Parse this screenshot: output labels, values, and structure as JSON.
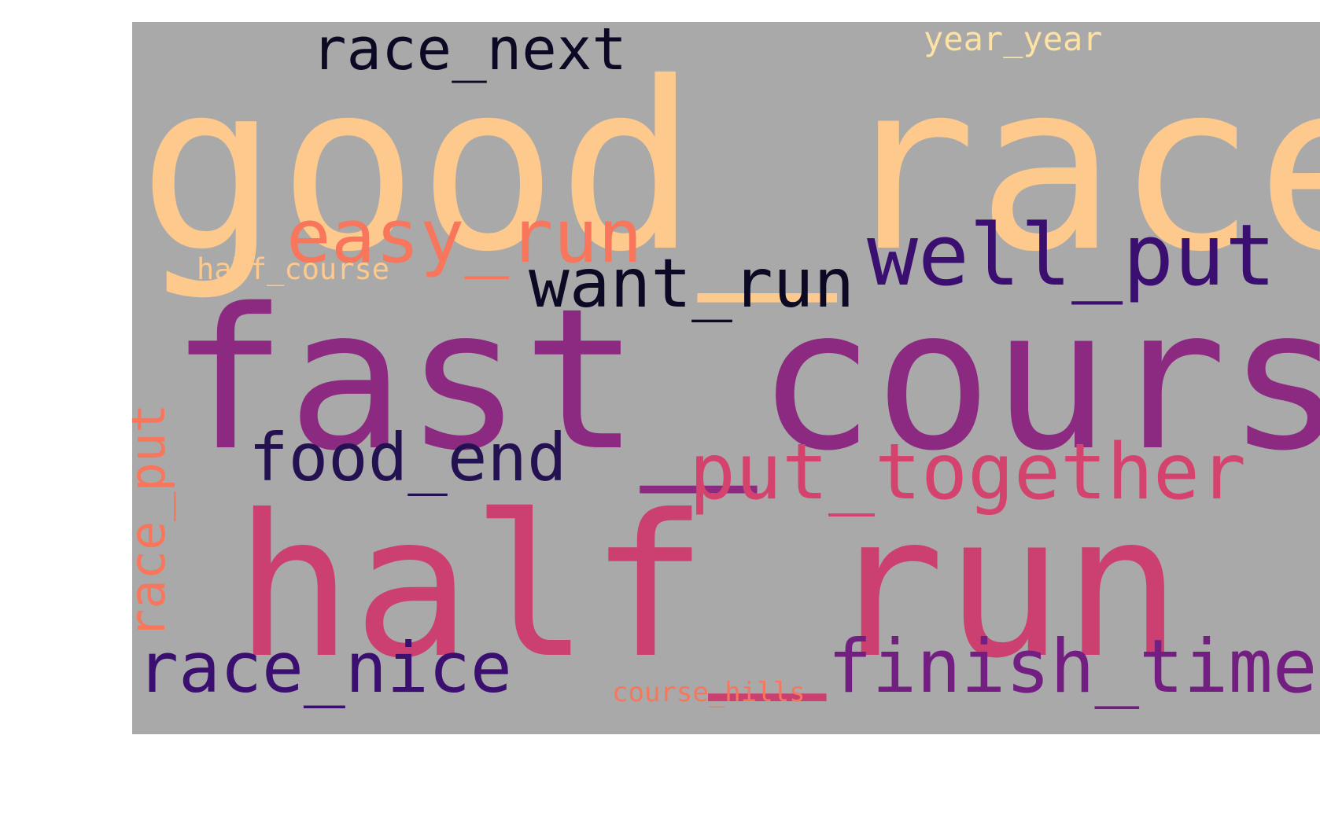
{
  "wordcloud": {
    "background": "#a9a9a9",
    "words": {
      "good_race": {
        "text": "good_race",
        "color": "#fec98d"
      },
      "race_next": {
        "text": "race_next",
        "color": "#0b0924"
      },
      "year_year": {
        "text": "year_year",
        "color": "#fde2a3"
      },
      "easy_run": {
        "text": "easy_run",
        "color": "#f8765c"
      },
      "half_course": {
        "text": "half_course",
        "color": "#fec98d"
      },
      "want_run": {
        "text": "want_run",
        "color": "#0b0924"
      },
      "well_put": {
        "text": "well_put",
        "color": "#3b0f70"
      },
      "fast_course": {
        "text": "fast_course",
        "color": "#8c2981"
      },
      "race_put": {
        "text": "race_put",
        "color": "#f8765c"
      },
      "food_end": {
        "text": "food_end",
        "color": "#231151"
      },
      "put_together": {
        "text": "put_together",
        "color": "#d3436e"
      },
      "half_run": {
        "text": "half_run",
        "color": "#cc3f71"
      },
      "race_nice": {
        "text": "race_nice",
        "color": "#3b0f70"
      },
      "course_hills": {
        "text": "course_hills",
        "color": "#f8765c"
      },
      "finish_time": {
        "text": "finish_time",
        "color": "#721f81"
      }
    }
  }
}
